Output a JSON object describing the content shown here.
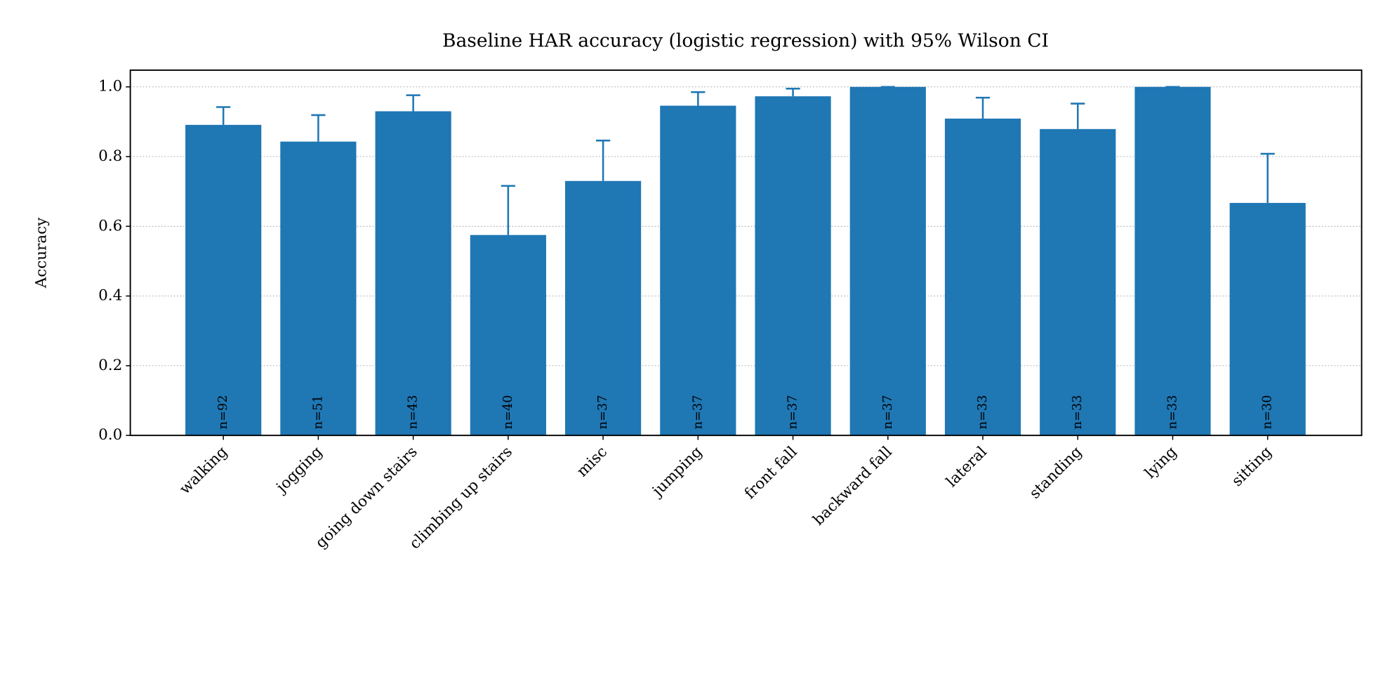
{
  "chart_data": {
    "type": "bar",
    "title": "Baseline HAR accuracy (logistic regression) with 95% Wilson CI",
    "y_label": "Accuracy",
    "categories": [
      "walking",
      "jogging",
      "going down stairs",
      "climbing up stairs",
      "misc",
      "jumping",
      "front fall",
      "backward fall",
      "lateral",
      "standing",
      "lying",
      "sitting"
    ],
    "values": [
      0.891,
      0.843,
      0.93,
      0.575,
      0.73,
      0.946,
      0.973,
      1.0,
      0.909,
      0.879,
      1.0,
      0.667
    ],
    "ci_upper": [
      0.942,
      0.919,
      0.976,
      0.716,
      0.846,
      0.985,
      0.995,
      1.0,
      0.969,
      0.952,
      1.0,
      0.808
    ],
    "n_labels": [
      "n=92",
      "n=51",
      "n=43",
      "n=40",
      "n=37",
      "n=37",
      "n=37",
      "n=37",
      "n=33",
      "n=33",
      "n=33",
      "n=30"
    ],
    "color": "#1f77b4",
    "ylim": [
      0,
      1.048
    ],
    "yticks": [
      {
        "value": 0,
        "label": "0.0"
      },
      {
        "value": 0.2,
        "label": "0.2"
      },
      {
        "value": 0.4,
        "label": "0.4"
      },
      {
        "value": 0.6,
        "label": "0.6"
      },
      {
        "value": 0.8,
        "label": "0.8"
      },
      {
        "value": 1,
        "label": "1.0"
      }
    ],
    "grid": true
  }
}
